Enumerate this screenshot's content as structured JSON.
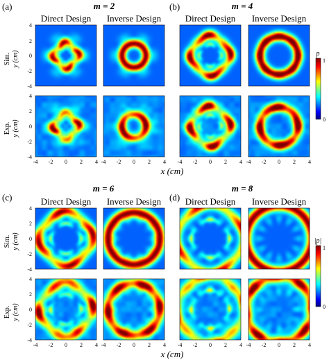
{
  "panels": [
    {
      "letter": "(a)",
      "m_label": "m = 2",
      "m": 2,
      "direct": "Direct Design",
      "inverse": "Inverse Design"
    },
    {
      "letter": "(b)",
      "m_label": "m = 4",
      "m": 4,
      "direct": "Direct Design",
      "inverse": "Inverse Design"
    },
    {
      "letter": "(c)",
      "m_label": "m = 6",
      "m": 6,
      "direct": "Direct Design",
      "inverse": "Inverse Design"
    },
    {
      "letter": "(d)",
      "m_label": "m = 8",
      "m": 8,
      "direct": "Direct Design",
      "inverse": "Inverse Design"
    }
  ],
  "rows": {
    "sim": "Sim.",
    "exp": "Exp."
  },
  "axes": {
    "xlabel": "x (cm)",
    "ylabel": "y (cm)",
    "ticks": [
      "-4",
      "-2",
      "0",
      "2",
      "4"
    ]
  },
  "colorbar": {
    "top_label": "p",
    "max": "1",
    "min": "0",
    "colors": [
      "#00007f",
      "#0000ff",
      "#00ffff",
      "#ffff00",
      "#ff0000",
      "#7f0000"
    ]
  }
}
